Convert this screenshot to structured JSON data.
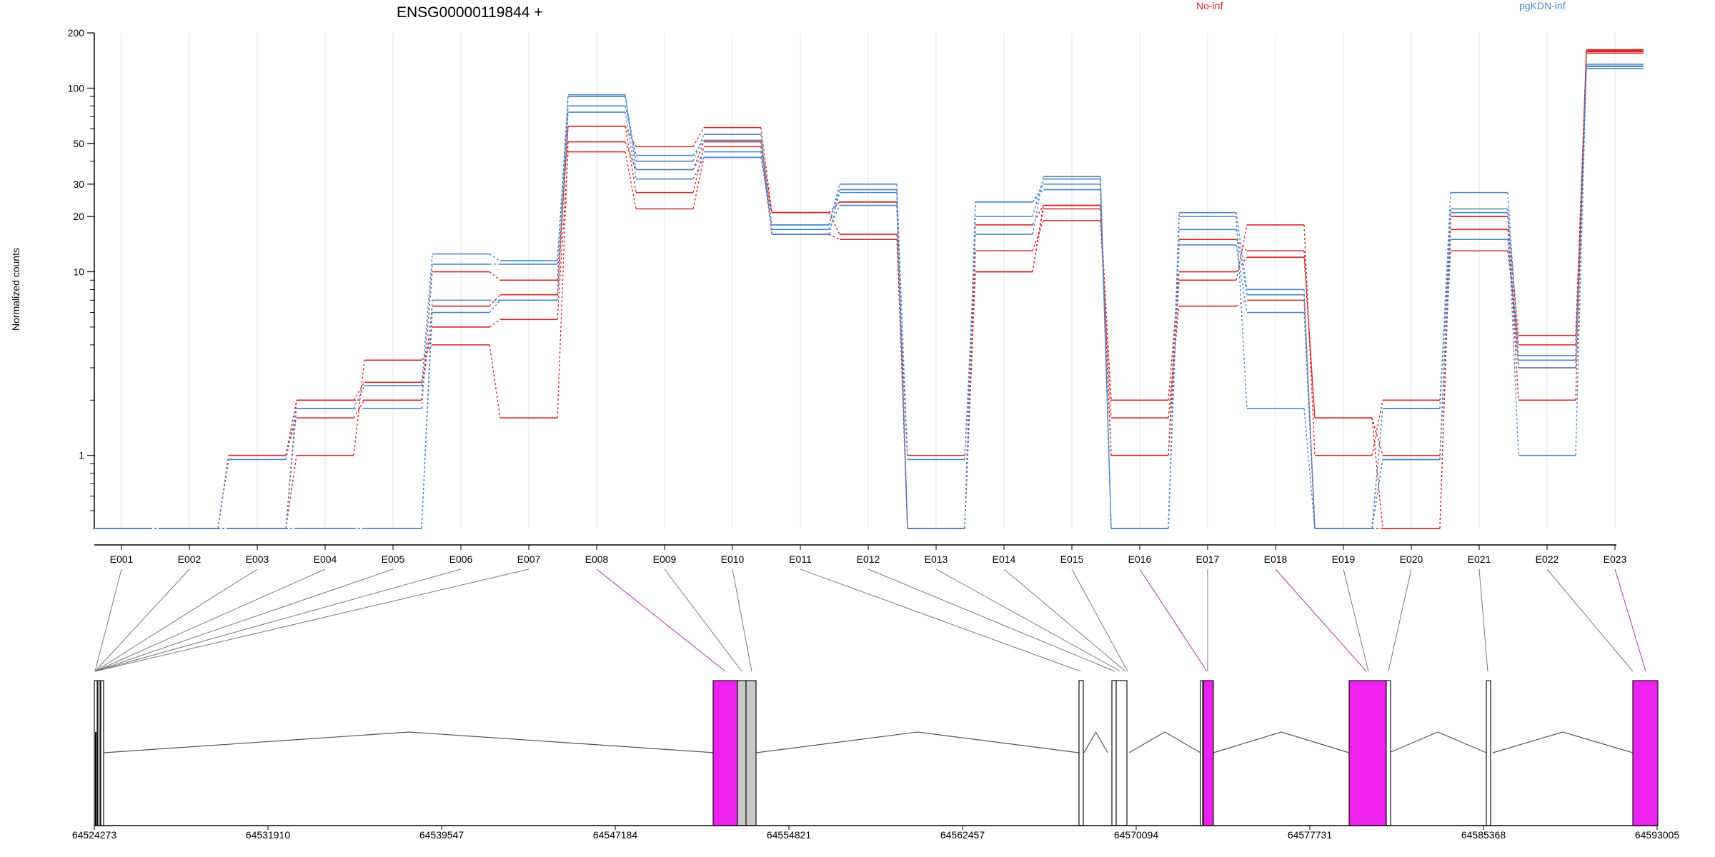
{
  "chart_data": {
    "type": "line",
    "title": "ENSG00000119844 +",
    "ylabel": "Normalized counts",
    "yscale": "log",
    "ylim": [
      0.4,
      200
    ],
    "y_ticks": [
      1,
      10,
      20,
      30,
      50,
      100,
      200
    ],
    "y_tick_labels": [
      "1",
      "10",
      "20",
      "30",
      "50",
      "100",
      "200"
    ],
    "categories": [
      "E001",
      "E002",
      "E003",
      "E004",
      "E005",
      "E006",
      "E007",
      "E008",
      "E009",
      "E010",
      "E011",
      "E012",
      "E013",
      "E014",
      "E015",
      "E016",
      "E017",
      "E018",
      "E019",
      "E020",
      "E021",
      "E022",
      "E023"
    ],
    "grid": "vertical",
    "legend": [
      {
        "name": "No-inf",
        "color": "#d62728",
        "placement": "top-center"
      },
      {
        "name": "pgKDN-inf",
        "color": "#4a86c8",
        "placement": "top-right"
      }
    ],
    "series": [
      {
        "group": "No-inf",
        "color": "#d62728",
        "values": [
          0.4,
          0.4,
          1.0,
          2.0,
          2.5,
          5.0,
          5.5,
          45,
          22,
          42,
          21,
          24,
          0.4,
          18,
          23,
          1.0,
          9.0,
          18,
          1.0,
          2.0,
          17,
          3.0,
          160
        ]
      },
      {
        "group": "No-inf",
        "color": "#d62728",
        "values": [
          0.4,
          0.4,
          1.0,
          1.6,
          2.0,
          10,
          9,
          62,
          27,
          48,
          16,
          15,
          1.0,
          10,
          22,
          2.0,
          10,
          12,
          1.6,
          1.0,
          13,
          4.0,
          158
        ]
      },
      {
        "group": "No-inf",
        "color": "#d62728",
        "values": [
          0.4,
          0.4,
          0.4,
          1.0,
          3.3,
          4.0,
          1.6,
          51,
          36,
          51,
          21,
          24,
          0.4,
          13,
          19,
          1.6,
          6.5,
          7.0,
          0.4,
          0.4,
          20,
          4.5,
          155
        ]
      },
      {
        "group": "No-inf",
        "color": "#d62728",
        "values": [
          0.4,
          0.4,
          0.4,
          2.0,
          2.0,
          6.5,
          7.5,
          62,
          48,
          61,
          21,
          16,
          0.4,
          10,
          23,
          1.0,
          15,
          13,
          1.6,
          0.4,
          20,
          2.0,
          162
        ]
      },
      {
        "group": "pgKDN-inf",
        "color": "#4a86c8",
        "values": [
          0.4,
          0.4,
          0.95,
          1.8,
          2.4,
          12.5,
          11.5,
          90,
          40,
          56,
          16,
          27,
          0.4,
          20,
          32,
          0.4,
          21,
          8.0,
          0.4,
          1.8,
          27,
          3.5,
          132
        ]
      },
      {
        "group": "pgKDN-inf",
        "color": "#4a86c8",
        "values": [
          0.4,
          0.4,
          0.4,
          1.8,
          1.8,
          11,
          11,
          80,
          43,
          52,
          18,
          30,
          0.95,
          16,
          33,
          0.4,
          17,
          7.5,
          0.4,
          1.8,
          22,
          3.0,
          128
        ]
      },
      {
        "group": "pgKDN-inf",
        "color": "#4a86c8",
        "values": [
          0.4,
          0.4,
          0.4,
          0.4,
          0.4,
          7.0,
          7.0,
          74,
          32,
          42,
          18,
          28,
          0.4,
          24,
          30,
          0.4,
          20,
          1.8,
          0.4,
          0.95,
          21,
          1.0,
          135
        ]
      },
      {
        "group": "pgKDN-inf",
        "color": "#4a86c8",
        "values": [
          0.4,
          0.4,
          0.4,
          0.4,
          0.4,
          6.0,
          7.0,
          92,
          36,
          45,
          17,
          23,
          0.4,
          24,
          28,
          0.4,
          14,
          6.0,
          0.4,
          0.95,
          15,
          3.3,
          131
        ]
      }
    ],
    "genome_axis_ticks": [
      "64524273",
      "64531910",
      "64539547",
      "64547184",
      "64554821",
      "64562457",
      "64570094",
      "64577731",
      "64585368",
      "64593005"
    ],
    "gene_model": {
      "highlight_color": "#ee22ee",
      "exon_fill": "#ffffff",
      "shared_fill": "#c8c8c8"
    }
  }
}
